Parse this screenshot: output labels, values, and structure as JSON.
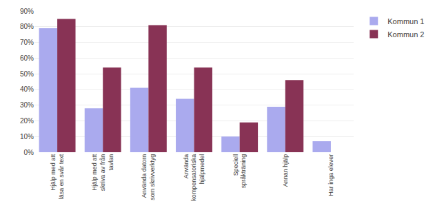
{
  "chart_data": {
    "type": "bar",
    "categories": [
      "Hjälp med att\nläsa en svår text",
      "Hjälp med att\nskriva av från\ntavlan",
      "Använda datorn\nsom skrivverktyg",
      "Använda\nkompensatoriska\nhjälpmedel",
      "Speciell\nspråkträning",
      "Annan hjälp",
      "Har inga elever"
    ],
    "series": [
      {
        "name": "Kommun 1",
        "color": "#aaaaee",
        "values": [
          79,
          28,
          41,
          34,
          10,
          29,
          7
        ]
      },
      {
        "name": "Kommun 2",
        "color": "#883355",
        "values": [
          85,
          54,
          81,
          54,
          19,
          46,
          0
        ]
      }
    ],
    "ylim": [
      0,
      90
    ],
    "yticks": [
      {
        "value": 0,
        "label": "0%"
      },
      {
        "value": 10,
        "label": "10%"
      },
      {
        "value": 20,
        "label": "20%"
      },
      {
        "value": 30,
        "label": "30%"
      },
      {
        "value": 40,
        "label": "40%"
      },
      {
        "value": 50,
        "label": "50%"
      },
      {
        "value": 60,
        "label": "60%"
      },
      {
        "value": 70,
        "label": "70%"
      },
      {
        "value": 80,
        "label": "80%"
      },
      {
        "value": 90,
        "label": "90%"
      }
    ],
    "grid": true,
    "legend": "right"
  }
}
